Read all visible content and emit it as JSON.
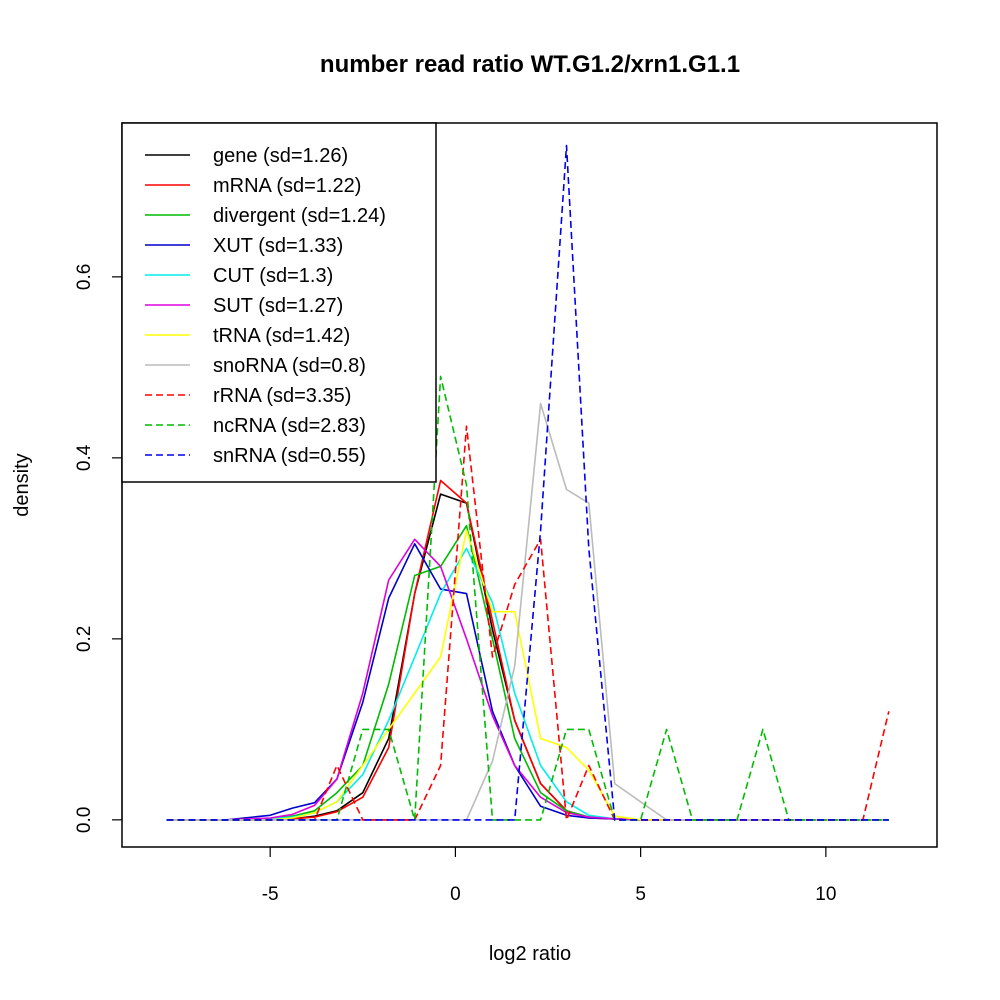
{
  "chart_data": {
    "type": "line",
    "title": "number read ratio WT.G1.2/xrn1.G1.1",
    "xlabel": "log2 ratio",
    "ylabel": "density",
    "xlim": [
      -9.0,
      13.0
    ],
    "ylim": [
      -0.03,
      0.77
    ],
    "x_ticks": [
      -5,
      0,
      5,
      10
    ],
    "x_tick_labels": [
      "-5",
      "0",
      "5",
      "10"
    ],
    "y_ticks": [
      0.0,
      0.2,
      0.4,
      0.6
    ],
    "y_tick_labels": [
      "0.0",
      "0.2",
      "0.4",
      "0.6"
    ],
    "grid": false,
    "legend_position": "top-left",
    "series": [
      {
        "name": "gene",
        "label": "gene (sd=1.26)",
        "color": "#000000",
        "dash": "solid",
        "x": [
          -7.8,
          -6.2,
          -5.0,
          -4.4,
          -3.8,
          -3.2,
          -2.5,
          -1.8,
          -1.1,
          -0.4,
          0.3,
          1.0,
          1.6,
          2.3,
          3.0,
          3.6,
          4.3,
          5.0,
          11.7
        ],
        "y": [
          0,
          0,
          0,
          0.001,
          0.004,
          0.01,
          0.03,
          0.09,
          0.25,
          0.36,
          0.35,
          0.21,
          0.11,
          0.04,
          0.01,
          0.003,
          0.001,
          0,
          0
        ]
      },
      {
        "name": "mRNA",
        "label": "mRNA (sd=1.22)",
        "color": "#ff0000",
        "dash": "solid",
        "x": [
          -7.8,
          -6.2,
          -5.0,
          -4.4,
          -3.8,
          -3.2,
          -2.5,
          -1.8,
          -1.1,
          -0.4,
          0.3,
          1.0,
          1.6,
          2.3,
          3.0,
          3.6,
          4.3,
          5.0,
          11.7
        ],
        "y": [
          0,
          0,
          0,
          0.001,
          0.003,
          0.009,
          0.025,
          0.08,
          0.25,
          0.375,
          0.35,
          0.22,
          0.11,
          0.04,
          0.01,
          0.002,
          0.001,
          0,
          0
        ]
      },
      {
        "name": "divergent",
        "label": "divergent (sd=1.24)",
        "color": "#00bb00",
        "dash": "solid",
        "x": [
          -7.8,
          -6.2,
          -5.0,
          -4.4,
          -3.8,
          -3.2,
          -2.5,
          -1.8,
          -1.1,
          -0.4,
          0.3,
          1.0,
          1.6,
          2.3,
          3.0,
          3.6,
          4.3,
          5.0,
          11.7
        ],
        "y": [
          0,
          0,
          0.001,
          0.004,
          0.01,
          0.03,
          0.06,
          0.15,
          0.27,
          0.28,
          0.325,
          0.2,
          0.09,
          0.03,
          0.01,
          0.003,
          0.001,
          0,
          0
        ]
      },
      {
        "name": "XUT",
        "label": "XUT (sd=1.33)",
        "color": "#0000cc",
        "dash": "solid",
        "x": [
          -7.8,
          -6.2,
          -5.0,
          -4.4,
          -3.8,
          -3.2,
          -2.5,
          -1.8,
          -1.1,
          -0.4,
          0.3,
          1.0,
          1.6,
          2.3,
          3.0,
          3.6,
          4.3,
          5.0,
          11.7
        ],
        "y": [
          0,
          0,
          0.005,
          0.013,
          0.019,
          0.045,
          0.13,
          0.245,
          0.305,
          0.255,
          0.25,
          0.12,
          0.06,
          0.015,
          0.005,
          0.002,
          0.001,
          0,
          0
        ]
      },
      {
        "name": "CUT",
        "label": "CUT (sd=1.3)",
        "color": "#00eeee",
        "dash": "solid",
        "x": [
          -7.8,
          -6.2,
          -5.0,
          -4.4,
          -3.8,
          -3.2,
          -2.5,
          -1.8,
          -1.1,
          -0.4,
          0.3,
          1.0,
          1.6,
          2.3,
          3.0,
          3.6,
          4.3,
          5.0,
          11.7
        ],
        "y": [
          0,
          0,
          0.001,
          0.003,
          0.008,
          0.02,
          0.05,
          0.11,
          0.18,
          0.25,
          0.3,
          0.24,
          0.14,
          0.06,
          0.02,
          0.005,
          0.001,
          0,
          0
        ]
      },
      {
        "name": "SUT",
        "label": "SUT (sd=1.27)",
        "color": "#dd00dd",
        "dash": "solid",
        "x": [
          -7.8,
          -6.2,
          -5.0,
          -4.4,
          -3.8,
          -3.2,
          -2.5,
          -1.8,
          -1.1,
          -0.4,
          0.3,
          1.0,
          1.6,
          2.3,
          3.0,
          3.6,
          4.3,
          5.0,
          11.7
        ],
        "y": [
          0,
          0,
          0.002,
          0.006,
          0.016,
          0.045,
          0.14,
          0.265,
          0.31,
          0.28,
          0.2,
          0.115,
          0.06,
          0.025,
          0.008,
          0.003,
          0.001,
          0,
          0
        ]
      },
      {
        "name": "tRNA",
        "label": "tRNA (sd=1.42)",
        "color": "#ffff00",
        "dash": "solid",
        "x": [
          -7.8,
          -6.2,
          -5.0,
          -4.4,
          -3.8,
          -3.2,
          -2.5,
          -1.8,
          -1.1,
          -0.4,
          0.3,
          1.0,
          1.6,
          2.3,
          3.0,
          3.6,
          4.3,
          5.0,
          11.7
        ],
        "y": [
          0,
          0,
          0,
          0.002,
          0.008,
          0.02,
          0.06,
          0.1,
          0.14,
          0.18,
          0.32,
          0.23,
          0.23,
          0.09,
          0.08,
          0.055,
          0.004,
          0,
          0
        ]
      },
      {
        "name": "snoRNA",
        "label": "snoRNA (sd=0.8)",
        "color": "#bbbbbb",
        "dash": "solid",
        "x": [
          -7.8,
          0.3,
          1.0,
          1.6,
          2.3,
          3.0,
          3.6,
          4.3,
          5.0,
          5.7,
          11.7
        ],
        "y": [
          0,
          0,
          0.065,
          0.17,
          0.46,
          0.365,
          0.35,
          0.04,
          0.02,
          0,
          0
        ]
      },
      {
        "name": "rRNA",
        "label": "rRNA (sd=3.35)",
        "color": "#ff0000",
        "dash": "dashed",
        "x": [
          -7.8,
          -3.8,
          -3.2,
          -2.5,
          -1.1,
          -0.4,
          0.3,
          1.0,
          1.6,
          2.3,
          3.0,
          3.6,
          4.3,
          10.0,
          11.0,
          11.7
        ],
        "y": [
          0,
          0,
          0.06,
          0,
          0,
          0.06,
          0.435,
          0.18,
          0.26,
          0.31,
          0,
          0.06,
          0,
          0,
          0,
          0.12
        ]
      },
      {
        "name": "ncRNA",
        "label": "ncRNA (sd=2.83)",
        "color": "#00bb00",
        "dash": "dashed",
        "x": [
          -7.8,
          -3.2,
          -2.5,
          -1.8,
          -1.1,
          -0.4,
          0.3,
          1.0,
          2.3,
          3.0,
          3.6,
          4.3,
          5.0,
          5.7,
          6.4,
          7.6,
          8.3,
          9.0,
          11.7
        ],
        "y": [
          0,
          0,
          0.1,
          0.1,
          0,
          0.49,
          0.37,
          0,
          0,
          0.1,
          0.1,
          0,
          0,
          0.1,
          0,
          0,
          0.1,
          0,
          0
        ]
      },
      {
        "name": "snRNA",
        "label": "snRNA (sd=0.55)",
        "color": "#0000ee",
        "dash": "dashed",
        "x": [
          -7.8,
          1.6,
          2.3,
          3.0,
          3.6,
          4.3,
          11.7
        ],
        "y": [
          0,
          0,
          0.32,
          0.745,
          0.3,
          0,
          0
        ]
      }
    ]
  }
}
